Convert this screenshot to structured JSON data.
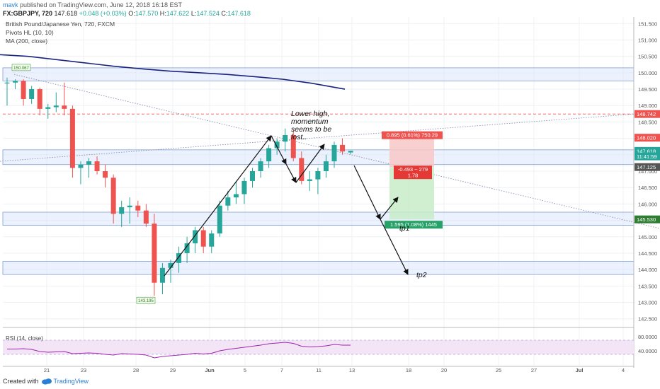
{
  "header": {
    "user": "mavk",
    "published": "published on TradingView.com, June 12, 2018 16:18 EST",
    "symbol": "FX:GBPJPY, 720",
    "price": "147.618",
    "change": "+0.048 (+0.03%)",
    "o_label": "O:",
    "o_val": "147.570",
    "h_label": "H:",
    "h_val": "147.622",
    "l_label": "L:",
    "l_val": "147.524",
    "c_label": "C:",
    "c_val": "147.618"
  },
  "footer": {
    "created": "Created with",
    "brand": "TradingView"
  },
  "colors": {
    "up": "#26a69a",
    "down": "#ef5350",
    "ma": "#1a237e",
    "zone": "#c5d5f5",
    "rsi_line": "#9c27b0",
    "rsi_bg": "#f3e5f5"
  },
  "chart_data": {
    "type": "candlestick",
    "title": "British Pound/Japanese Yen, 720, FXCM",
    "indicators": [
      "Pivots HL (10, 10)",
      "MA (200, close)"
    ],
    "y_axis_ticks": [
      "151.500",
      "151.000",
      "150.500",
      "150.000",
      "149.500",
      "149.000",
      "148.500",
      "148.000",
      "147.500",
      "147.000",
      "146.500",
      "146.000",
      "145.500",
      "145.000",
      "144.500",
      "144.000",
      "143.500",
      "143.000",
      "142.500"
    ],
    "ylim": [
      142.3,
      151.7
    ],
    "x_axis_ticks": [
      "21",
      "23",
      "28",
      "29",
      "Jun",
      "5",
      "7",
      "11",
      "13",
      "18",
      "20",
      "25",
      "27",
      "Jul",
      "4"
    ],
    "candles": [
      {
        "o": 149.7,
        "h": 149.85,
        "l": 149.0,
        "c": 149.7
      },
      {
        "o": 149.7,
        "h": 149.8,
        "l": 149.5,
        "c": 149.75
      },
      {
        "o": 149.75,
        "h": 149.8,
        "l": 149.0,
        "c": 149.2
      },
      {
        "o": 149.2,
        "h": 149.6,
        "l": 149.05,
        "c": 149.5
      },
      {
        "o": 149.5,
        "h": 149.55,
        "l": 148.7,
        "c": 148.9
      },
      {
        "o": 148.9,
        "h": 149.05,
        "l": 148.6,
        "c": 148.95
      },
      {
        "o": 148.95,
        "h": 149.4,
        "l": 148.8,
        "c": 149.0
      },
      {
        "o": 149.0,
        "h": 149.7,
        "l": 148.7,
        "c": 148.9
      },
      {
        "o": 148.9,
        "h": 149.0,
        "l": 146.8,
        "c": 147.1
      },
      {
        "o": 147.1,
        "h": 147.3,
        "l": 146.6,
        "c": 147.2
      },
      {
        "o": 147.2,
        "h": 147.4,
        "l": 146.8,
        "c": 147.3
      },
      {
        "o": 147.3,
        "h": 147.45,
        "l": 146.9,
        "c": 147.0
      },
      {
        "o": 147.0,
        "h": 147.2,
        "l": 146.5,
        "c": 146.8
      },
      {
        "o": 146.8,
        "h": 146.9,
        "l": 145.4,
        "c": 145.7
      },
      {
        "o": 145.7,
        "h": 146.1,
        "l": 145.3,
        "c": 145.9
      },
      {
        "o": 145.9,
        "h": 146.2,
        "l": 145.4,
        "c": 145.95
      },
      {
        "o": 145.95,
        "h": 146.1,
        "l": 145.6,
        "c": 145.8
      },
      {
        "o": 145.8,
        "h": 146.0,
        "l": 145.3,
        "c": 145.4
      },
      {
        "o": 145.4,
        "h": 145.7,
        "l": 143.2,
        "c": 143.6
      },
      {
        "o": 143.6,
        "h": 144.2,
        "l": 143.25,
        "c": 144.05
      },
      {
        "o": 144.05,
        "h": 144.3,
        "l": 143.6,
        "c": 144.2
      },
      {
        "o": 144.2,
        "h": 144.7,
        "l": 143.9,
        "c": 144.5
      },
      {
        "o": 144.5,
        "h": 145.0,
        "l": 144.2,
        "c": 144.8
      },
      {
        "o": 144.8,
        "h": 145.3,
        "l": 144.5,
        "c": 145.2
      },
      {
        "o": 145.2,
        "h": 145.3,
        "l": 144.5,
        "c": 144.7
      },
      {
        "o": 144.7,
        "h": 145.2,
        "l": 144.5,
        "c": 145.1
      },
      {
        "o": 145.1,
        "h": 146.1,
        "l": 145.0,
        "c": 145.95
      },
      {
        "o": 145.95,
        "h": 146.4,
        "l": 145.8,
        "c": 146.2
      },
      {
        "o": 146.2,
        "h": 146.7,
        "l": 146.0,
        "c": 146.3
      },
      {
        "o": 146.3,
        "h": 146.8,
        "l": 146.0,
        "c": 146.7
      },
      {
        "o": 146.7,
        "h": 147.1,
        "l": 146.5,
        "c": 147.0
      },
      {
        "o": 147.0,
        "h": 147.4,
        "l": 146.8,
        "c": 147.3
      },
      {
        "o": 147.3,
        "h": 147.8,
        "l": 147.1,
        "c": 147.7
      },
      {
        "o": 147.7,
        "h": 148.0,
        "l": 147.5,
        "c": 147.9
      },
      {
        "o": 147.9,
        "h": 148.3,
        "l": 147.6,
        "c": 148.1
      },
      {
        "o": 148.1,
        "h": 148.25,
        "l": 147.3,
        "c": 147.4
      },
      {
        "o": 147.4,
        "h": 147.6,
        "l": 146.6,
        "c": 146.7
      },
      {
        "o": 146.7,
        "h": 147.0,
        "l": 146.4,
        "c": 146.75
      },
      {
        "o": 146.75,
        "h": 147.1,
        "l": 146.3,
        "c": 147.0
      },
      {
        "o": 147.0,
        "h": 147.5,
        "l": 146.8,
        "c": 147.3
      },
      {
        "o": 147.3,
        "h": 147.9,
        "l": 147.1,
        "c": 147.8
      },
      {
        "o": 147.8,
        "h": 148.0,
        "l": 147.5,
        "c": 147.6
      },
      {
        "o": 147.57,
        "h": 147.62,
        "l": 147.52,
        "c": 147.62
      }
    ],
    "ma200": [
      [
        0,
        150.55
      ],
      [
        40,
        150.5
      ],
      [
        80,
        150.4
      ],
      [
        120,
        150.3
      ],
      [
        160,
        150.2
      ],
      [
        200,
        150.12
      ],
      [
        240,
        150.05
      ],
      [
        280,
        150.0
      ],
      [
        320,
        149.95
      ],
      [
        360,
        149.88
      ],
      [
        400,
        149.8
      ],
      [
        440,
        149.68
      ],
      [
        487,
        149.5
      ]
    ],
    "horizontal_zones": [
      {
        "top": 150.15,
        "bottom": 149.75
      },
      {
        "top": 147.65,
        "bottom": 147.2
      },
      {
        "top": 145.75,
        "bottom": 145.35
      },
      {
        "top": 144.25,
        "bottom": 143.85
      }
    ],
    "resistance_line": 148.742,
    "trendlines": [
      {
        "x1": 20,
        "y1": 149.95,
        "x2": 932,
        "y2": 145.25,
        "style": "dotted"
      },
      {
        "x1": 0,
        "y1": 147.3,
        "x2": 932,
        "y2": 148.8,
        "style": "dotted"
      }
    ],
    "pivot_labels": [
      {
        "text": "150.067",
        "x": 30,
        "y": 150.15
      },
      {
        "text": "143.195",
        "x": 206,
        "y": 143.05
      }
    ],
    "annotations": [
      {
        "text": "Lower high,"
      },
      {
        "text": "momentum"
      },
      {
        "text": "seems to be"
      },
      {
        "text": "lost.."
      },
      {
        "text": "tp1"
      },
      {
        "text": "tp2"
      }
    ],
    "position": {
      "entry": 147.125,
      "stop": 148.02,
      "target": 145.53,
      "stop_label": "0.895 (0.61%) 750.29",
      "mid_label_1": "-0.493 ~ 279",
      "mid_label_2": "1.78",
      "target_label": "1.595 (1.08%) 1445"
    },
    "price_tags": [
      {
        "text": "148.742",
        "value": 148.742,
        "color": "#ef5350"
      },
      {
        "text": "148.020",
        "value": 148.02,
        "color": "#ef5350"
      },
      {
        "text": "147.618",
        "value": 147.618,
        "color": "#26a69a"
      },
      {
        "text": "11:41:59",
        "value": 147.45,
        "color": "#26a69a"
      },
      {
        "text": "147.125",
        "value": 147.125,
        "color": "#555555"
      },
      {
        "text": "145.530",
        "value": 145.53,
        "color": "#2e7d32"
      }
    ],
    "rsi": {
      "label": "RSI (14, close)",
      "ticks": [
        "80.0000",
        "40.0000"
      ],
      "levels": [
        70,
        30
      ],
      "ylim": [
        0,
        100
      ],
      "values": [
        45,
        45,
        46,
        44,
        38,
        36,
        37,
        38,
        32,
        33,
        34,
        33,
        30,
        28,
        32,
        31,
        30,
        28,
        20,
        24,
        26,
        28,
        30,
        33,
        31,
        33,
        40,
        44,
        47,
        50,
        53,
        56,
        60,
        62,
        64,
        61,
        53,
        51,
        52,
        54,
        58,
        56,
        56
      ]
    }
  }
}
